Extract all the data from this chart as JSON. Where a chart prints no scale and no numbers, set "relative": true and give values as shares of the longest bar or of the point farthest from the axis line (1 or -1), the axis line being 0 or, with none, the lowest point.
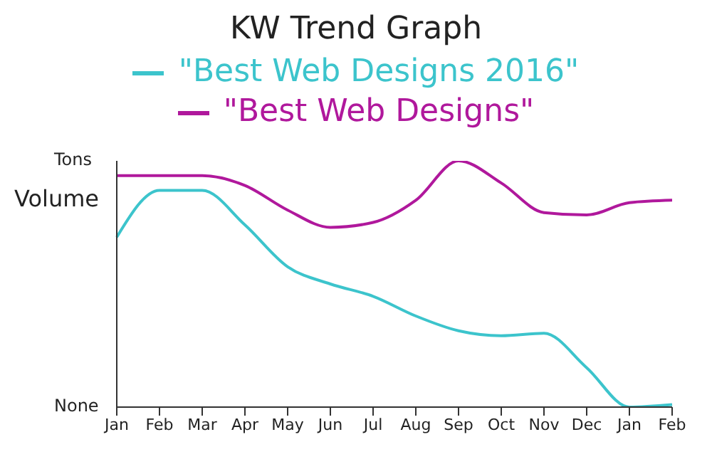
{
  "chart_data": {
    "type": "line",
    "title": "KW Trend Graph",
    "ylabel": "Volume",
    "annotations": [
      "Tons",
      "None"
    ],
    "relative": true,
    "categories": [
      "Jan",
      "Feb",
      "Mar",
      "Apr",
      "May",
      "Jun",
      "Jul",
      "Aug",
      "Sep",
      "Oct",
      "Nov",
      "Dec",
      "Jan",
      "Feb"
    ],
    "series": [
      {
        "name": "\"Best Web Designs 2016\"",
        "color": "#3cc4cc",
        "values": [
          0.69,
          0.88,
          0.88,
          0.74,
          0.57,
          0.5,
          0.45,
          0.37,
          0.31,
          0.29,
          0.3,
          0.16,
          0,
          0.01
        ]
      },
      {
        "name": "\"Best Web Designs\"",
        "color": "#b0189c",
        "values": [
          0.94,
          0.94,
          0.94,
          0.9,
          0.8,
          0.73,
          0.75,
          0.84,
          1.0,
          0.91,
          0.79,
          0.78,
          0.83,
          0.84
        ]
      }
    ],
    "legend": "top",
    "grid": false,
    "marker": "none",
    "line_style": "solid"
  }
}
